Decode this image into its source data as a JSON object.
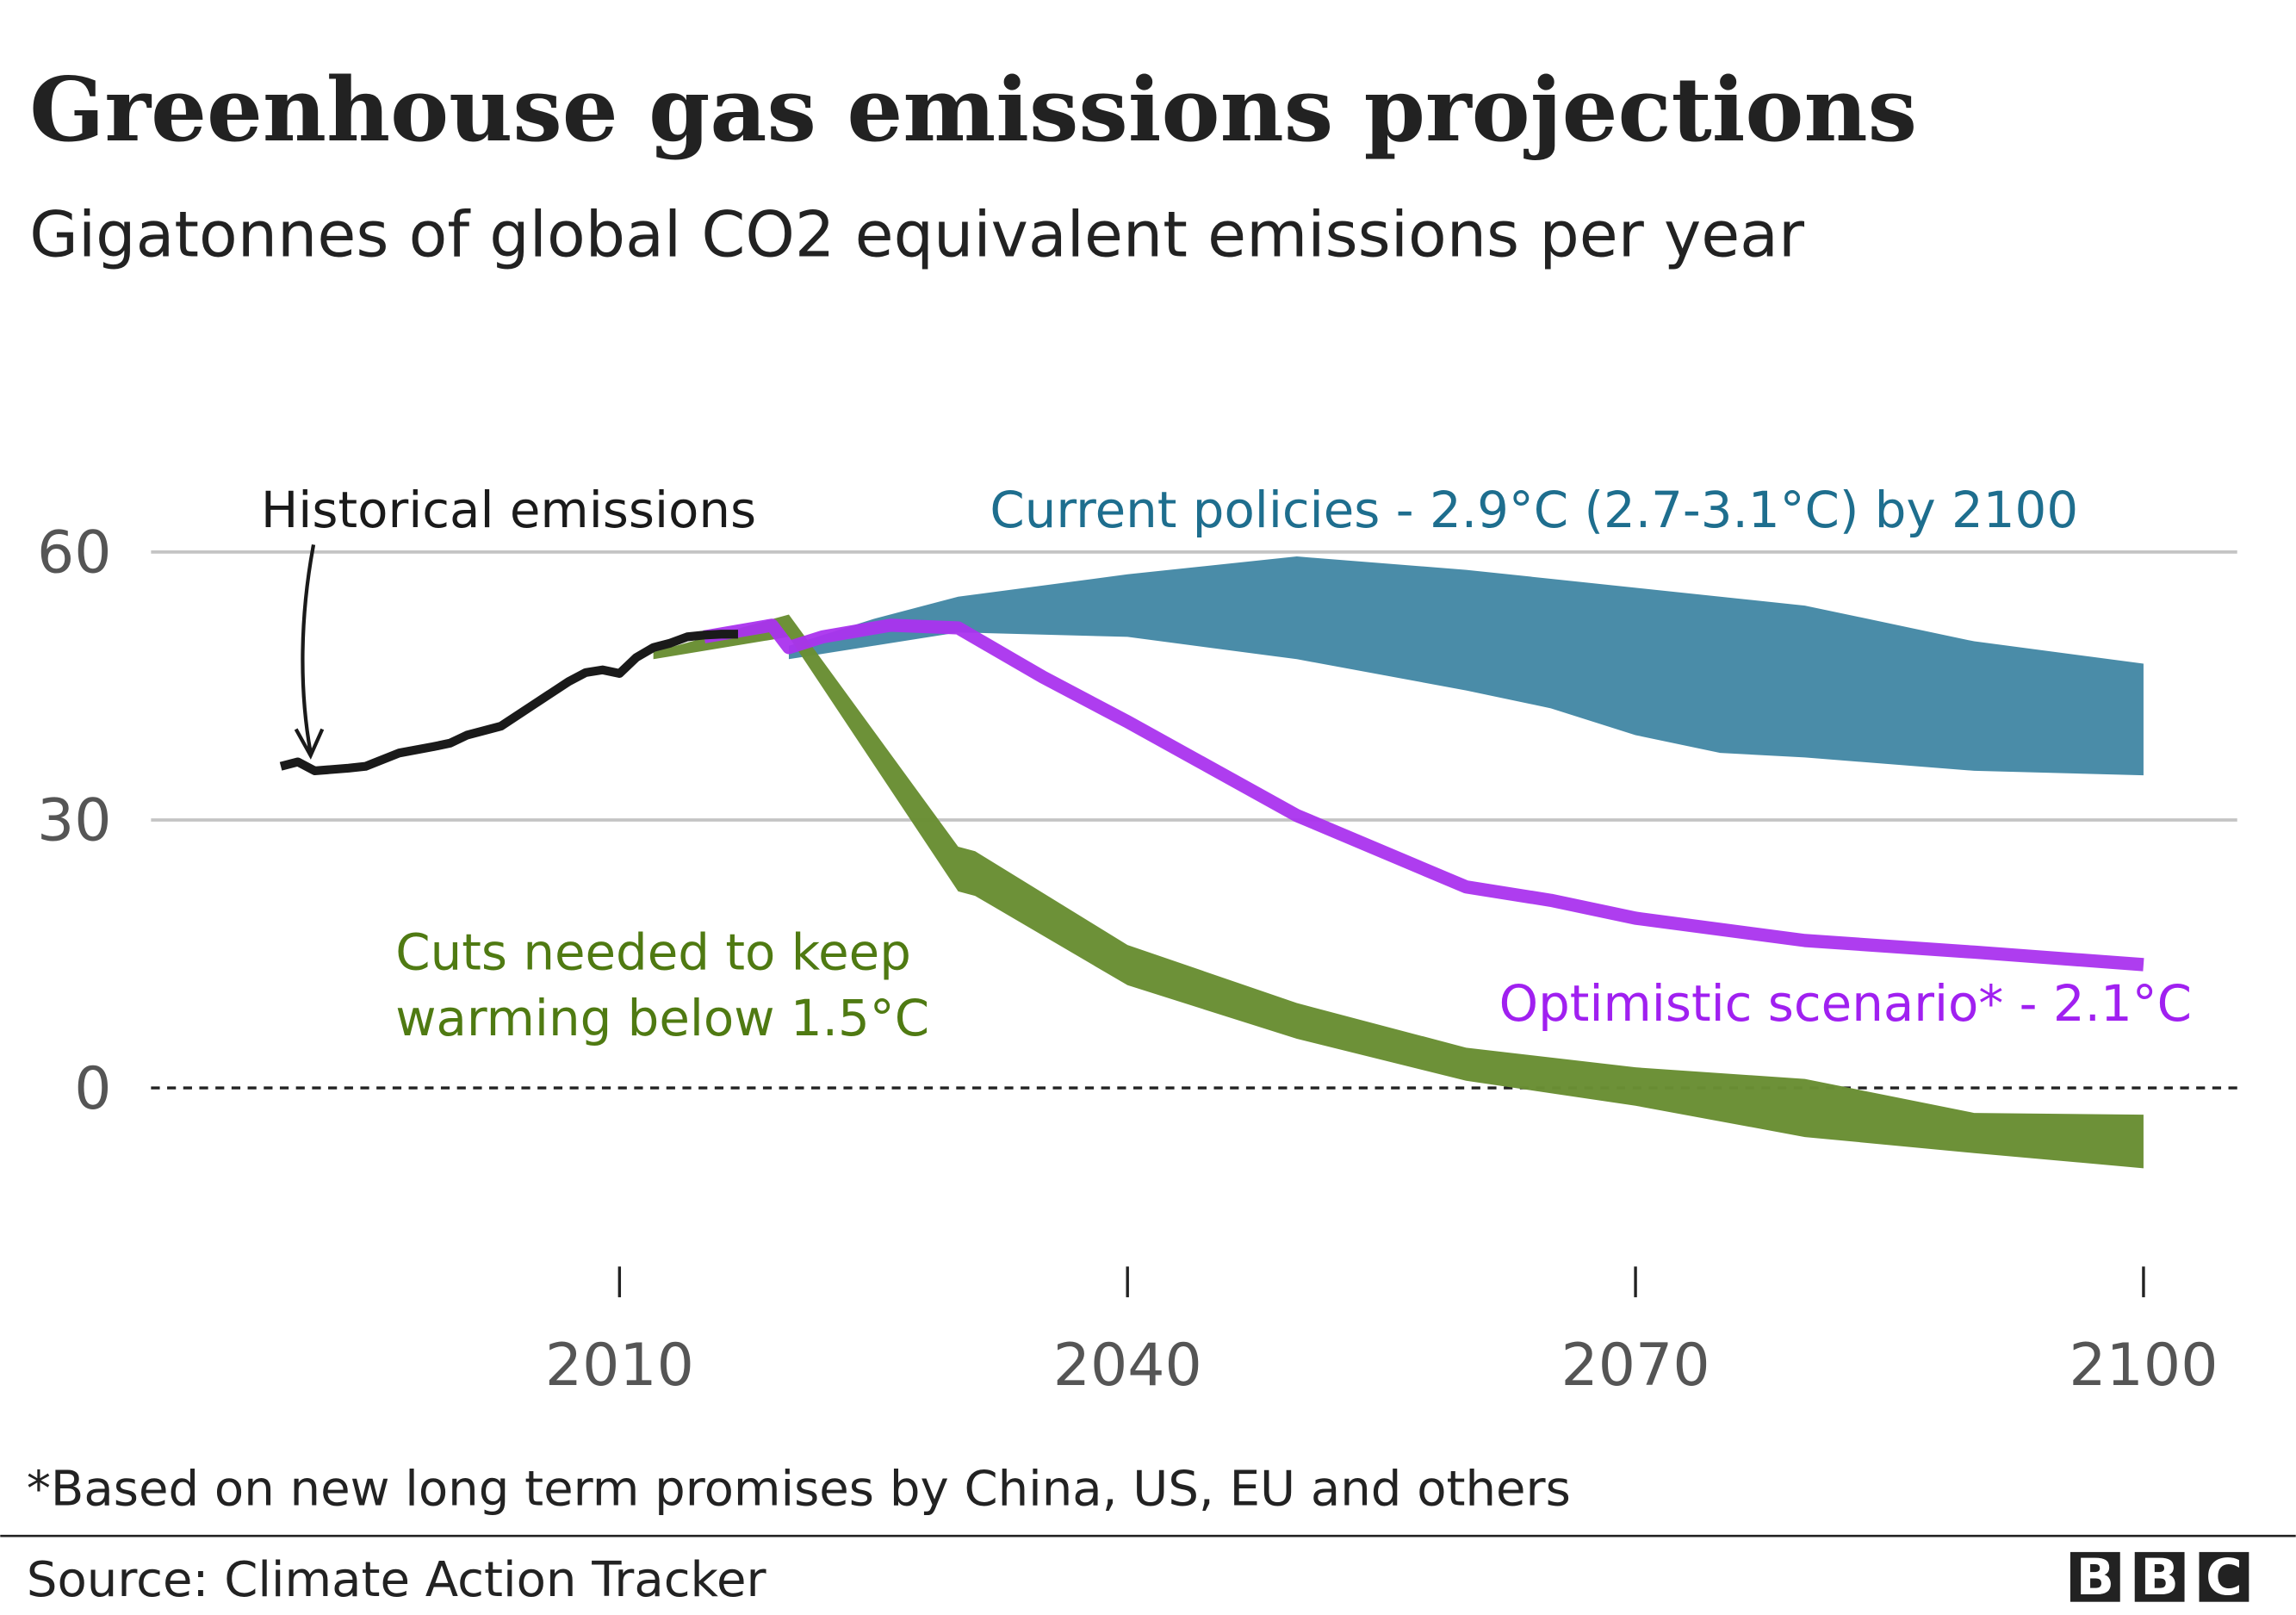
{
  "title": "Greenhouse gas emissions projections",
  "subtitle": "Gigatonnes of global CO2 equivalent emissions per year",
  "footnote": "*Based on new long term promises by China, US, EU and others",
  "source": "Source: Climate Action Tracker",
  "logo": [
    "B",
    "B",
    "C"
  ],
  "chart_data": {
    "type": "area",
    "title": "Greenhouse gas emissions projections",
    "ylabel": "Gigatonnes of global CO2 equivalent emissions per year",
    "xlim": [
      1990,
      2100
    ],
    "ylim": [
      -20,
      60
    ],
    "x_ticks": [
      "2010",
      "2040",
      "2070",
      "2100"
    ],
    "x_tick_values": [
      2010,
      2040,
      2070,
      2100
    ],
    "y_ticks": [
      "60",
      "30",
      "0"
    ],
    "y_tick_values": [
      60,
      30,
      0
    ],
    "grid": true,
    "zero_line": "dashed",
    "annotations": {
      "historical": "Historical emissions",
      "current": "Current policies - 2.9°C (2.7-3.1°C) by 2100",
      "cuts": [
        "Cuts needed to keep",
        "warming below 1.5°C"
      ],
      "optimistic": "Optimistic scenario* - 2.1°C"
    },
    "series": [
      {
        "name": "Historical emissions",
        "kind": "line",
        "color": "#1a1a1a",
        "x": [
          1990,
          1991,
          1992,
          1994,
          1995,
          1997,
          1999,
          2000,
          2001,
          2003,
          2005,
          2007,
          2008,
          2009,
          2010,
          2011,
          2012,
          2013,
          2014,
          2015,
          2016,
          2017
        ],
        "y": [
          36,
          36.5,
          35.5,
          35.8,
          36,
          37.5,
          38.2,
          38.6,
          39.5,
          40.5,
          43,
          45.5,
          46.5,
          46.8,
          46.4,
          48.2,
          49.3,
          49.8,
          50.5,
          50.7,
          50.8,
          50.8
        ]
      },
      {
        "name": "Current policies - 2.9°C (2.7-3.1°C) by 2100",
        "kind": "band",
        "color": "#468aa6",
        "x": [
          2020,
          2025,
          2030,
          2040,
          2050,
          2060,
          2065,
          2070,
          2075,
          2080,
          2090,
          2100
        ],
        "upper": [
          49.5,
          52.5,
          55,
          57.5,
          59.5,
          58,
          57,
          56,
          55,
          54,
          50,
          47.5
        ],
        "lower": [
          48,
          49.5,
          51,
          50.5,
          48,
          44.5,
          42.5,
          39.5,
          37.5,
          37,
          35.5,
          35
        ]
      },
      {
        "name": "Cuts needed to keep warming below 1.5°C",
        "kind": "band",
        "color": "#6a8f34",
        "x": [
          2012,
          2020,
          2030,
          2031,
          2040,
          2050,
          2060,
          2070,
          2080,
          2090,
          2100
        ],
        "upper": [
          48.8,
          53,
          27,
          26.5,
          16,
          9.5,
          4.5,
          2.3,
          1,
          -2.8,
          -3
        ],
        "lower": [
          48,
          50.5,
          22,
          21.5,
          11.5,
          5.5,
          0.8,
          -2,
          -5.5,
          -7.3,
          -9
        ]
      },
      {
        "name": "Optimistic scenario* - 2.1°C",
        "kind": "line",
        "color": "#aa33ee",
        "x": [
          2015,
          2019,
          2020,
          2022,
          2026,
          2030,
          2035,
          2040,
          2050,
          2060,
          2065,
          2070,
          2080,
          2090,
          2100
        ],
        "y": [
          50.5,
          51.8,
          49.3,
          50.5,
          51.8,
          51.5,
          46,
          41,
          30.5,
          22.5,
          21,
          19,
          16.5,
          15.2,
          13.8
        ]
      }
    ]
  }
}
